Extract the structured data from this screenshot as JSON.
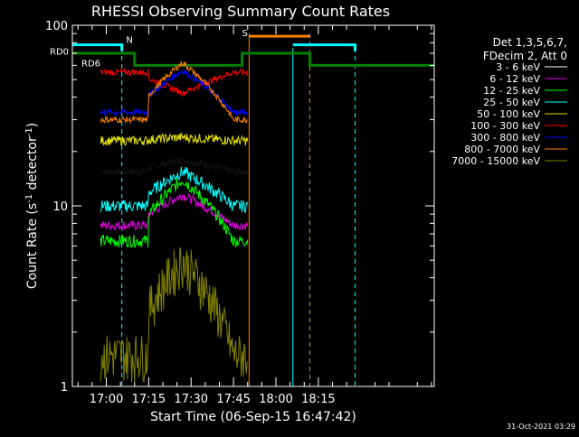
{
  "chart_data": {
    "type": "line",
    "title": "RHESSI Observing Summary Count Rates",
    "xlabel": "Start Time (06-Sep-15 16:47:42)",
    "ylabel_main": "Count Rate (s",
    "ylabel_sup": "-1",
    "ylabel_mid": " detector",
    "ylabel_sup2": "-1",
    "ylabel_end": ")",
    "yscale": "log",
    "ylim": [
      1,
      100
    ],
    "xlim_minutes": [
      -12,
      116
    ],
    "x_ticks": [
      {
        "minutes": 0,
        "label": "17:00"
      },
      {
        "minutes": 15,
        "label": "17:15"
      },
      {
        "minutes": 30,
        "label": "17:30"
      },
      {
        "minutes": 45,
        "label": "17:45"
      },
      {
        "minutes": 60,
        "label": "18:00"
      },
      {
        "minutes": 75,
        "label": "18:15"
      }
    ],
    "y_ticks": [
      {
        "value": 1,
        "label": "1"
      },
      {
        "value": 10,
        "label": "10"
      },
      {
        "value": 100,
        "label": "100"
      }
    ],
    "legend_header": [
      "Det 1,3,5,6,7,",
      "FDecim 2, Att 0"
    ],
    "series": [
      {
        "name": "3 - 6 keV",
        "color": "#000000",
        "base": 15.5,
        "peak": 18,
        "noise": 0.05
      },
      {
        "name": "6 - 12 keV",
        "color": "#e000e0",
        "base": 7.8,
        "peak": 11.5,
        "noise": 0.06
      },
      {
        "name": "12 - 25 keV",
        "color": "#00ff00",
        "base": 6.4,
        "peak": 14,
        "noise": 0.08
      },
      {
        "name": "25 - 50 keV",
        "color": "#00ffff",
        "base": 10,
        "peak": 15.5,
        "noise": 0.08
      },
      {
        "name": "50 - 100 keV",
        "color": "#e0e000",
        "base": 23,
        "peak": 24,
        "noise": 0.06
      },
      {
        "name": "100 - 300 keV",
        "color": "#ff0000",
        "base": 55,
        "peak": 42,
        "noise": 0.04
      },
      {
        "name": "300 - 800 keV",
        "color": "#0000ff",
        "base": 33,
        "peak": 56,
        "noise": 0.04
      },
      {
        "name": "800 - 7000 keV",
        "color": "#ff8000",
        "base": 30,
        "peak": 62,
        "noise": 0.04
      },
      {
        "name": "7000 - 15000 keV",
        "color": "#808000",
        "base": 1.5,
        "peak": 5,
        "noise": 0.3
      }
    ],
    "segments_minutes": [
      [
        -5,
        50
      ],
      [
        15,
        45
      ]
    ],
    "annotations": [
      {
        "text": "RD0",
        "color": "#00a000"
      },
      {
        "text": "RD6",
        "color": "#00a000"
      },
      {
        "text": "N",
        "color": "#00ffff"
      },
      {
        "text": "S",
        "color": "#ff8000"
      }
    ],
    "footer_date": "31-Oct-2021 03:29",
    "grid": false
  }
}
